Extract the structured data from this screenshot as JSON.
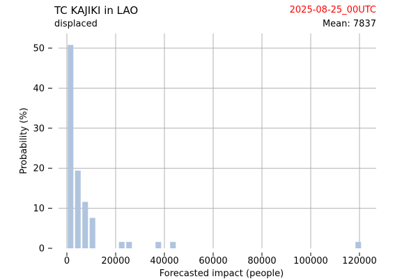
{
  "header": {
    "title": "TC KAJIKI in LAO",
    "subtitle": "displaced",
    "date": "2025-08-25_00UTC",
    "mean_text": "Mean: 7837"
  },
  "colors": {
    "bar": "#b0c4de",
    "grid": "#b0b0b0",
    "date": "#ff0000"
  },
  "chart_data": {
    "type": "bar",
    "title": "TC KAJIKI in LAO",
    "xlabel": "Forecasted impact (people)",
    "ylabel": "Probability (%)",
    "xlim": [
      -5000,
      127000
    ],
    "ylim": [
      0,
      53.5
    ],
    "xticks": [
      0,
      20000,
      40000,
      60000,
      80000,
      100000,
      120000
    ],
    "yticks": [
      0,
      10,
      20,
      30,
      40,
      50
    ],
    "grid": true,
    "bin_width": 3000,
    "bars": [
      {
        "x": 1500,
        "value": 50.8
      },
      {
        "x": 4500,
        "value": 19.4
      },
      {
        "x": 7500,
        "value": 11.6
      },
      {
        "x": 10500,
        "value": 7.6
      },
      {
        "x": 22500,
        "value": 1.6
      },
      {
        "x": 25500,
        "value": 1.6
      },
      {
        "x": 37500,
        "value": 1.6
      },
      {
        "x": 43500,
        "value": 1.6
      },
      {
        "x": 119500,
        "value": 1.6
      }
    ]
  }
}
